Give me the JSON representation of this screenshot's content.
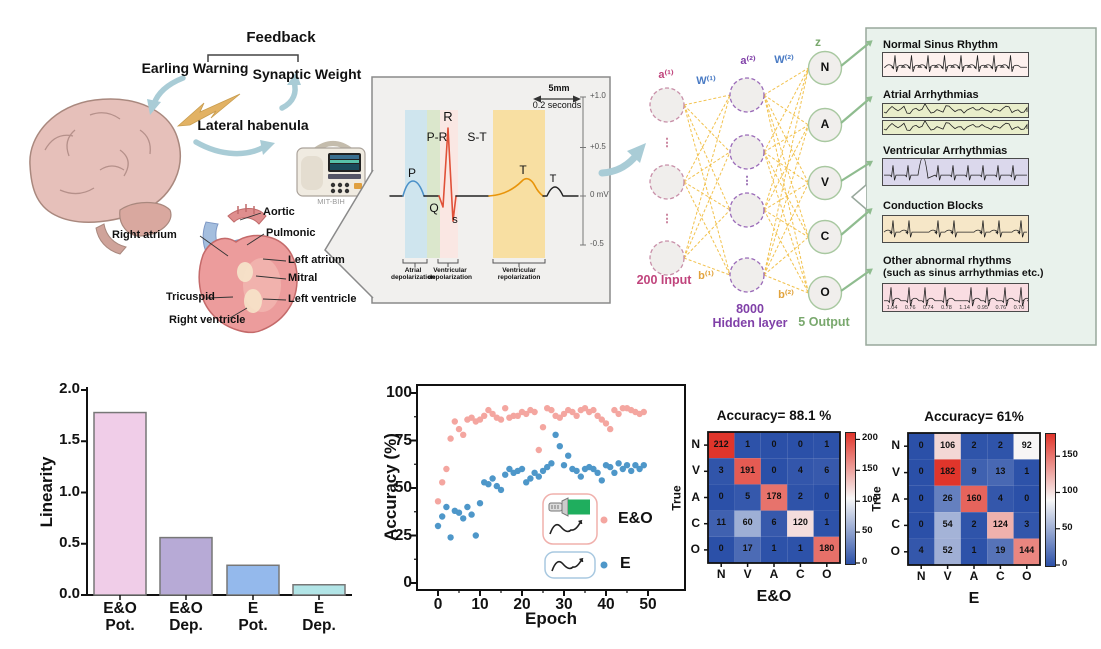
{
  "figure": {
    "top": {
      "feedback_label": "Feedback",
      "early_warning_label": "Earling Warning",
      "synaptic_weight_label": "Synaptic Weight",
      "lateral_habenula_label": "Lateral habenula",
      "device_label": "MIT-BIH",
      "heart_labels": [
        "Aortic",
        "Pulmonic",
        "Right atrium",
        "Left atrium",
        "Mitral",
        "Tricuspid",
        "Left ventricle",
        "Right ventricle"
      ]
    },
    "ecg_panel": {
      "scale_length_label": "5mm",
      "scale_time_label": "0.2 seconds",
      "axis_labels": [
        "+1.0",
        "+0.5",
        "0 mV",
        "-0.5"
      ],
      "wave_labels": {
        "p": "P",
        "q": "Q",
        "r": "R",
        "s": "s",
        "t": "T",
        "t2": "T",
        "pr_segment": "P-R",
        "st_segment": "S-T"
      },
      "phase_labels": [
        [
          "Atrial",
          "depolarization"
        ],
        [
          "Ventricular",
          "depolarization"
        ],
        [
          "Ventricular",
          "repolarization"
        ]
      ]
    },
    "network": {
      "labels": {
        "a1": "a⁽¹⁾",
        "w1": "W⁽¹⁾",
        "a2": "a⁽²⁾",
        "w2": "W⁽²⁾",
        "b1": "b⁽¹⁾",
        "b2": "b⁽²⁾",
        "z": "z"
      },
      "input_label": "200 Input",
      "hidden_label_line1": "8000",
      "hidden_label_line2": "Hidden layer",
      "output_label": "5 Output",
      "output_nodes": [
        "N",
        "A",
        "V",
        "C",
        "O"
      ]
    },
    "classes_panel": {
      "items": [
        {
          "title": "Normal Sinus Rhythm",
          "strip_color": "#fdf1ee",
          "kind": "normal"
        },
        {
          "title": "Atrial Arrhythmias",
          "strip_color": "#e9eecb",
          "kind": "atrial"
        },
        {
          "title": "Ventricular Arrhythmias",
          "strip_color": "#dbd8ec",
          "kind": "ventricular"
        },
        {
          "title": "Conduction Blocks",
          "strip_color": "#f6e7c8",
          "kind": "conduction"
        },
        {
          "title": "Other abnormal rhythms",
          "subtitle": "(such as sinus arrhythmias etc.)",
          "strip_color": "#f9dde2",
          "kind": "other",
          "rr_values": [
            "1.04",
            "0.76",
            "0.74",
            "0.78",
            "1.14",
            "0.95",
            "0.76",
            "0.70"
          ]
        }
      ]
    }
  },
  "colors": {
    "arrow_blue": "#a9ccd6",
    "lightning": "#e2b264",
    "nn_connection": "#f2c24e",
    "nn_input_stroke": "#c88fa8",
    "nn_hidden_stroke": "#9a6ab8",
    "nn_output_stroke": "#a8c8a0",
    "nn_input_text": "#c0447c",
    "nn_hidden_text": "#8040a8",
    "nn_output_text": "#79a86d",
    "nn_w_text": "#4a7bc4",
    "nn_b_text": "#e2a33c",
    "panel_bg": "#e9f2ec",
    "panel_border": "#98a89c",
    "ecg_panel_bg": "#f1f0ee",
    "band_blue": "#cfe5ee",
    "band_green": "#dbe7cc",
    "band_pink": "#fae7e3",
    "band_orange": "#f8dfa2",
    "trace_p": "#4a90c8",
    "trace_qrs": "#e05038",
    "trace_t": "#e8940a",
    "heat_low": "#2b50a8",
    "heat_mid": "#f7f7f7",
    "heat_high": "#e0352b",
    "green_arrow": "#8fbc8f"
  },
  "chart_data": [
    {
      "type": "bar",
      "title": "",
      "xlabel": "",
      "ylabel": "Linearity",
      "categories": [
        [
          "E&O",
          "Pot."
        ],
        [
          "E&O",
          "Dep."
        ],
        [
          "E",
          "Pot."
        ],
        [
          "E",
          "Dep."
        ]
      ],
      "values": [
        1.78,
        0.56,
        0.29,
        0.1
      ],
      "bar_colors": [
        "#f0cde8",
        "#b7aad6",
        "#94b9ec",
        "#b2e5e7"
      ],
      "ylim": [
        0,
        2.0
      ],
      "yticks": [
        "0.0",
        "0.5",
        "1.0",
        "1.5",
        "2.0"
      ]
    },
    {
      "type": "scatter",
      "title": "",
      "xlabel": "Epoch",
      "ylabel": "Accuracy (%)",
      "xlim": [
        -5,
        59
      ],
      "ylim": [
        -4,
        104
      ],
      "xticks": [
        0,
        10,
        20,
        30,
        40,
        50
      ],
      "yticks": [
        0,
        25,
        50,
        75,
        100
      ],
      "x": [
        0,
        1,
        2,
        3,
        4,
        5,
        6,
        7,
        8,
        9,
        10,
        11,
        12,
        13,
        14,
        15,
        16,
        17,
        18,
        19,
        20,
        21,
        22,
        23,
        24,
        25,
        26,
        27,
        28,
        29,
        30,
        31,
        32,
        33,
        34,
        35,
        36,
        37,
        38,
        39,
        40,
        41,
        42,
        43,
        44,
        45,
        46,
        47,
        48,
        49
      ],
      "series": [
        {
          "name": "E&O",
          "color": "#f4a6a0",
          "y": [
            43,
            53,
            60,
            76,
            85,
            81,
            78,
            86,
            87,
            85,
            86,
            88,
            91,
            89,
            87,
            86,
            92,
            87,
            88,
            88,
            90,
            89,
            91,
            90,
            70,
            82,
            92,
            91,
            88,
            87,
            89,
            91,
            90,
            88,
            91,
            92,
            90,
            91,
            88,
            86,
            84,
            81,
            91,
            89,
            92,
            92,
            91,
            90,
            89,
            90
          ]
        },
        {
          "name": "E",
          "color": "#4e97c9",
          "y": [
            30,
            35,
            40,
            24,
            38,
            37,
            34,
            40,
            36,
            25,
            42,
            53,
            52,
            55,
            51,
            49,
            57,
            60,
            58,
            59,
            60,
            53,
            55,
            58,
            56,
            59,
            61,
            63,
            78,
            72,
            62,
            67,
            60,
            59,
            56,
            60,
            61,
            60,
            58,
            54,
            62,
            61,
            58,
            63,
            60,
            62,
            59,
            62,
            60,
            62
          ]
        }
      ],
      "legend": [
        {
          "label": "E&O",
          "icon": "flashlight-and-wave"
        },
        {
          "label": "E",
          "icon": "wave"
        }
      ]
    },
    {
      "type": "heatmap",
      "title": "Accuracy= 88.1 %",
      "xlabel": "E&O",
      "ylabel": "True",
      "row_labels": [
        "N",
        "V",
        "A",
        "C",
        "O"
      ],
      "col_labels": [
        "N",
        "V",
        "A",
        "C",
        "O"
      ],
      "matrix": [
        [
          212,
          1,
          0,
          0,
          1
        ],
        [
          3,
          191,
          0,
          4,
          6
        ],
        [
          0,
          5,
          178,
          2,
          0
        ],
        [
          11,
          60,
          6,
          120,
          1
        ],
        [
          0,
          17,
          1,
          1,
          180
        ]
      ],
      "vmax": 212,
      "colorbar_ticks": [
        200,
        150,
        100,
        50,
        0
      ]
    },
    {
      "type": "heatmap",
      "title": "Accuracy= 61%",
      "xlabel": "E",
      "ylabel": "True",
      "row_labels": [
        "N",
        "V",
        "A",
        "C",
        "O"
      ],
      "col_labels": [
        "N",
        "V",
        "A",
        "C",
        "O"
      ],
      "matrix": [
        [
          0,
          106,
          2,
          2,
          92
        ],
        [
          0,
          182,
          9,
          13,
          1
        ],
        [
          0,
          26,
          160,
          4,
          0
        ],
        [
          0,
          54,
          2,
          124,
          3
        ],
        [
          4,
          52,
          1,
          19,
          144
        ]
      ],
      "vmax": 182,
      "colorbar_ticks": [
        150,
        100,
        50,
        0
      ]
    }
  ]
}
